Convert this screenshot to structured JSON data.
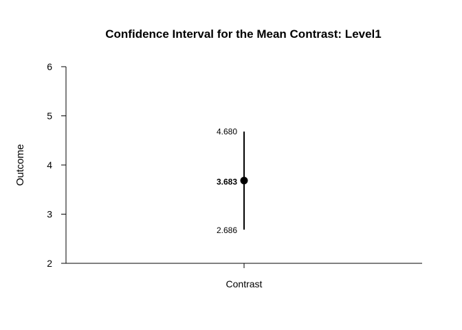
{
  "chart_data": {
    "type": "scatter",
    "title": "Confidence Interval for the Mean Contrast: Level1",
    "xlabel": "",
    "ylabel": "Outcome",
    "categories": [
      "Contrast"
    ],
    "ylim": [
      2,
      6
    ],
    "yticks": [
      2,
      3,
      4,
      5,
      6
    ],
    "grid": false,
    "points": [
      {
        "category": "Contrast",
        "mean": 3.683,
        "lower": 2.686,
        "upper": 4.68,
        "mean_label": "3.683",
        "lower_label": "2.686",
        "upper_label": "4.680"
      }
    ],
    "colors": {
      "mark": "#000000"
    }
  }
}
